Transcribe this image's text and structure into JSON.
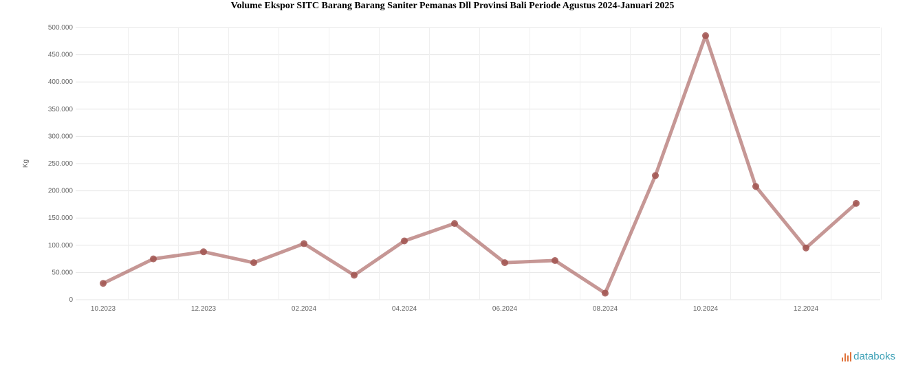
{
  "chart_data": {
    "type": "line",
    "title": "Volume Ekspor SITC Barang Barang Saniter Pemanas Dll Provinsi Bali Periode Agustus 2024-Januari 2025",
    "ylabel": "Kg",
    "xlabel": "",
    "ylim": [
      0,
      500000
    ],
    "yticks": [
      0,
      50000,
      100000,
      150000,
      200000,
      250000,
      300000,
      350000,
      400000,
      450000,
      500000
    ],
    "ytick_labels": [
      "0",
      "50.000",
      "100.000",
      "150.000",
      "200.000",
      "250.000",
      "300.000",
      "350.000",
      "400.000",
      "450.000",
      "500.000"
    ],
    "xtick_labels": [
      "10.2023",
      "12.2023",
      "02.2024",
      "04.2024",
      "06.2024",
      "08.2024",
      "10.2024",
      "12.2024"
    ],
    "x": [
      "10.2023",
      "11.2023",
      "12.2023",
      "01.2024",
      "02.2024",
      "03.2024",
      "04.2024",
      "05.2024",
      "06.2024",
      "07.2024",
      "08.2024",
      "09.2024",
      "10.2024",
      "11.2024",
      "12.2024",
      "01.2025"
    ],
    "series": [
      {
        "values": [
          30000,
          75000,
          88000,
          68000,
          103000,
          45000,
          108000,
          140000,
          68000,
          72000,
          12000,
          228000,
          485000,
          208000,
          95000,
          177000
        ]
      }
    ],
    "grid": true,
    "legend": "none",
    "line_color": "#a0524f"
  },
  "brand": {
    "name": "databoks",
    "text_color": "#3a9fb5",
    "mark_color": "#e0733b"
  }
}
